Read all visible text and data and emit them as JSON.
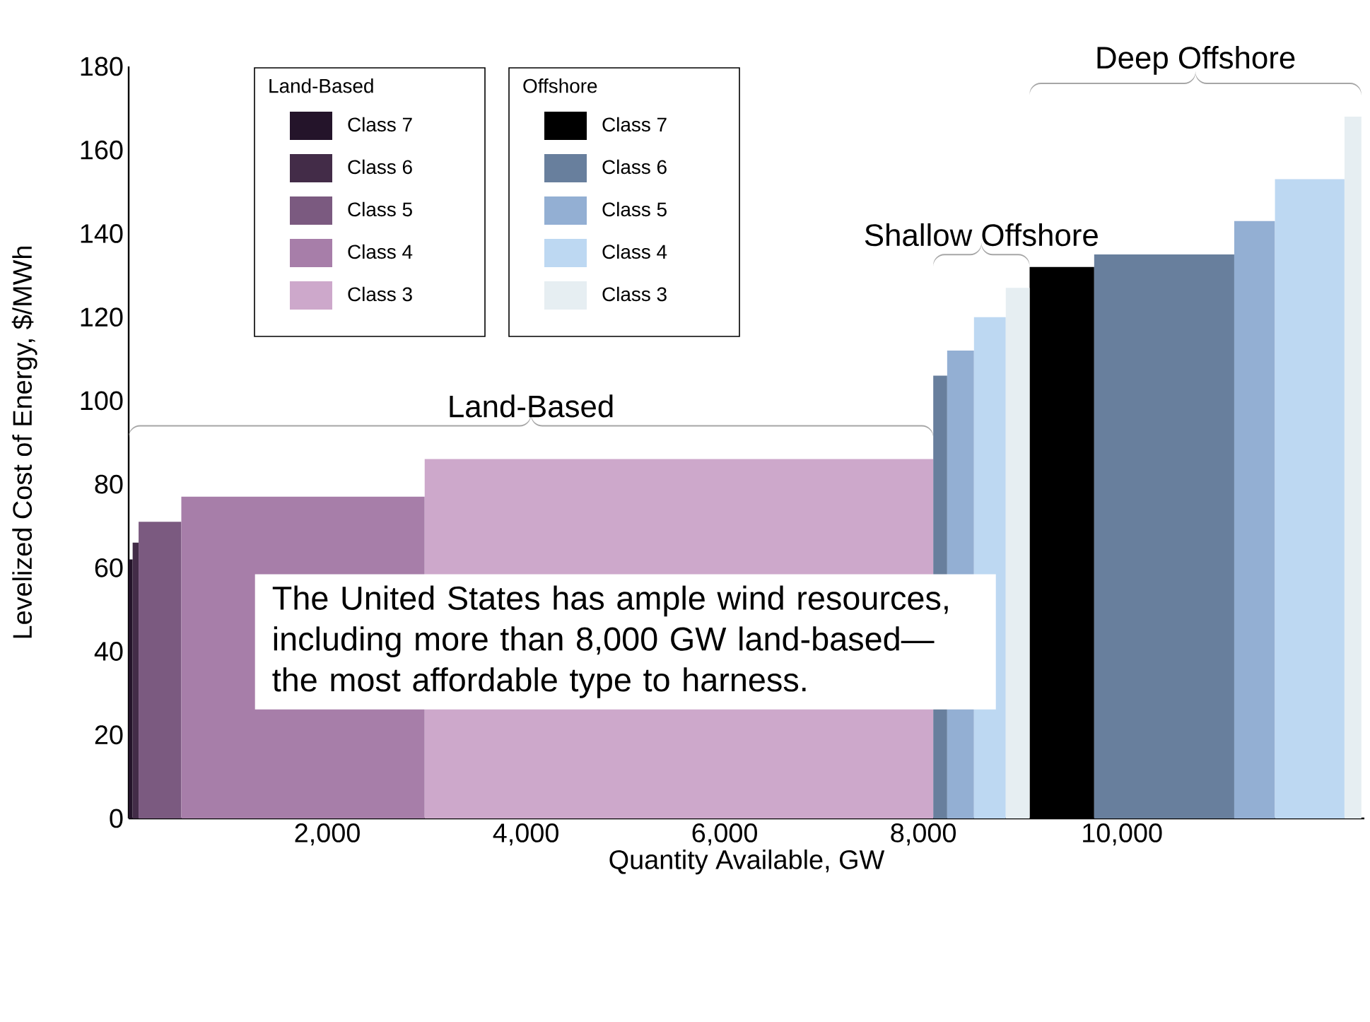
{
  "chart_data": {
    "type": "histogram",
    "xlabel": "Quantity Available, GW",
    "ylabel": "Levelized Cost of Energy, $/MWh",
    "xlim": [
      0,
      12440
    ],
    "ylim": [
      0,
      180
    ],
    "xticks": [
      {
        "value": 2000,
        "label": "2,000"
      },
      {
        "value": 4000,
        "label": "4,000"
      },
      {
        "value": 6000,
        "label": "6,000"
      },
      {
        "value": 8000,
        "label": "8,000"
      },
      {
        "value": 10000,
        "label": "10,000"
      }
    ],
    "yticks": [
      0,
      20,
      40,
      60,
      80,
      100,
      120,
      140,
      160,
      180
    ],
    "grid": false,
    "legend": "top left",
    "legend_title": [
      "Land-Based",
      "Offshore"
    ],
    "bins": [
      0,
      40,
      100,
      530,
      2980,
      8100,
      8240,
      8510,
      8830,
      9070,
      9720,
      11130,
      11540,
      12240,
      12410
    ],
    "series": [
      {
        "name": "Class 7",
        "color": "#24142a",
        "values": [
          62,
          null,
          null,
          null,
          null,
          null,
          null,
          null,
          null,
          null,
          null,
          null,
          null,
          null
        ]
      },
      {
        "name": "Class 6",
        "color": "#432c48",
        "values": [
          null,
          66,
          null,
          null,
          null,
          null,
          null,
          null,
          null,
          null,
          null,
          null,
          null,
          null
        ]
      },
      {
        "name": "Class 5",
        "color": "#7b5a80",
        "values": [
          null,
          null,
          71,
          null,
          null,
          null,
          null,
          null,
          null,
          null,
          null,
          null,
          null,
          null
        ]
      },
      {
        "name": "Class 4",
        "color": "#a77ea9",
        "values": [
          null,
          null,
          null,
          77,
          null,
          null,
          null,
          null,
          null,
          null,
          null,
          null,
          null,
          null
        ]
      },
      {
        "name": "Class 3",
        "color": "#cda8cb",
        "values": [
          null,
          null,
          null,
          null,
          86,
          null,
          null,
          null,
          null,
          null,
          null,
          null,
          null,
          null
        ]
      },
      {
        "name": "Class 7",
        "color": "#000000",
        "values": [
          null,
          null,
          null,
          null,
          null,
          null,
          null,
          null,
          null,
          132,
          null,
          null,
          null,
          null
        ]
      },
      {
        "name": "Class 6",
        "color": "#687f9d",
        "values": [
          null,
          null,
          null,
          null,
          null,
          106,
          null,
          null,
          null,
          null,
          135,
          null,
          null,
          null
        ]
      },
      {
        "name": "Class 5",
        "color": "#93afd3",
        "values": [
          null,
          null,
          null,
          null,
          null,
          null,
          112,
          null,
          null,
          null,
          null,
          143,
          null,
          null
        ]
      },
      {
        "name": "Class 4",
        "color": "#bdd8f2",
        "values": [
          null,
          null,
          null,
          null,
          null,
          null,
          null,
          120,
          null,
          null,
          null,
          null,
          153,
          null
        ]
      },
      {
        "name": "Class 3",
        "color": "#e6eef2",
        "values": [
          null,
          null,
          null,
          null,
          null,
          null,
          null,
          null,
          127,
          null,
          null,
          null,
          null,
          168
        ]
      }
    ],
    "annotations": [
      "Land-Based",
      "Shallow Offshore",
      "Deep Offshore",
      "The United States has ample wind resources, including more than 8,000 GW land-based—the most affordable type to harness."
    ]
  }
}
